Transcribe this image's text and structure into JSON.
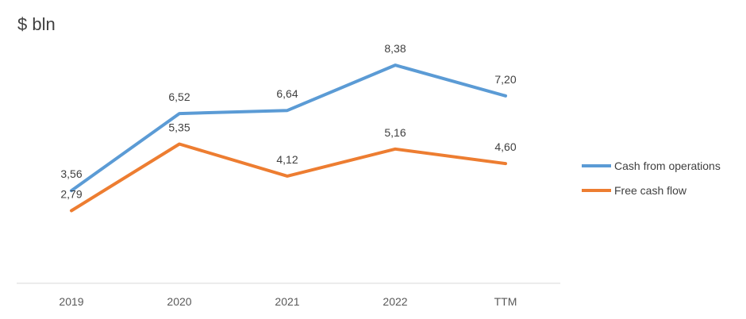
{
  "chart_data": {
    "type": "line",
    "ylabel": "$ bln",
    "categories": [
      "2019",
      "2020",
      "2021",
      "2022",
      "TTM"
    ],
    "series": [
      {
        "name": "Cash from operations",
        "color": "#5B9BD5",
        "values": [
          3.56,
          6.52,
          6.64,
          8.38,
          7.2
        ],
        "labels": [
          "3,56",
          "6,52",
          "6,64",
          "8,38",
          "7,20"
        ]
      },
      {
        "name": "Free cash flow",
        "color": "#ED7D31",
        "values": [
          2.79,
          5.35,
          4.12,
          5.16,
          4.6
        ],
        "labels": [
          "2,79",
          "5,35",
          "4,12",
          "5,16",
          "4,60"
        ]
      }
    ],
    "ylim": [
      0,
      10
    ],
    "grid": false,
    "legend": "right"
  }
}
